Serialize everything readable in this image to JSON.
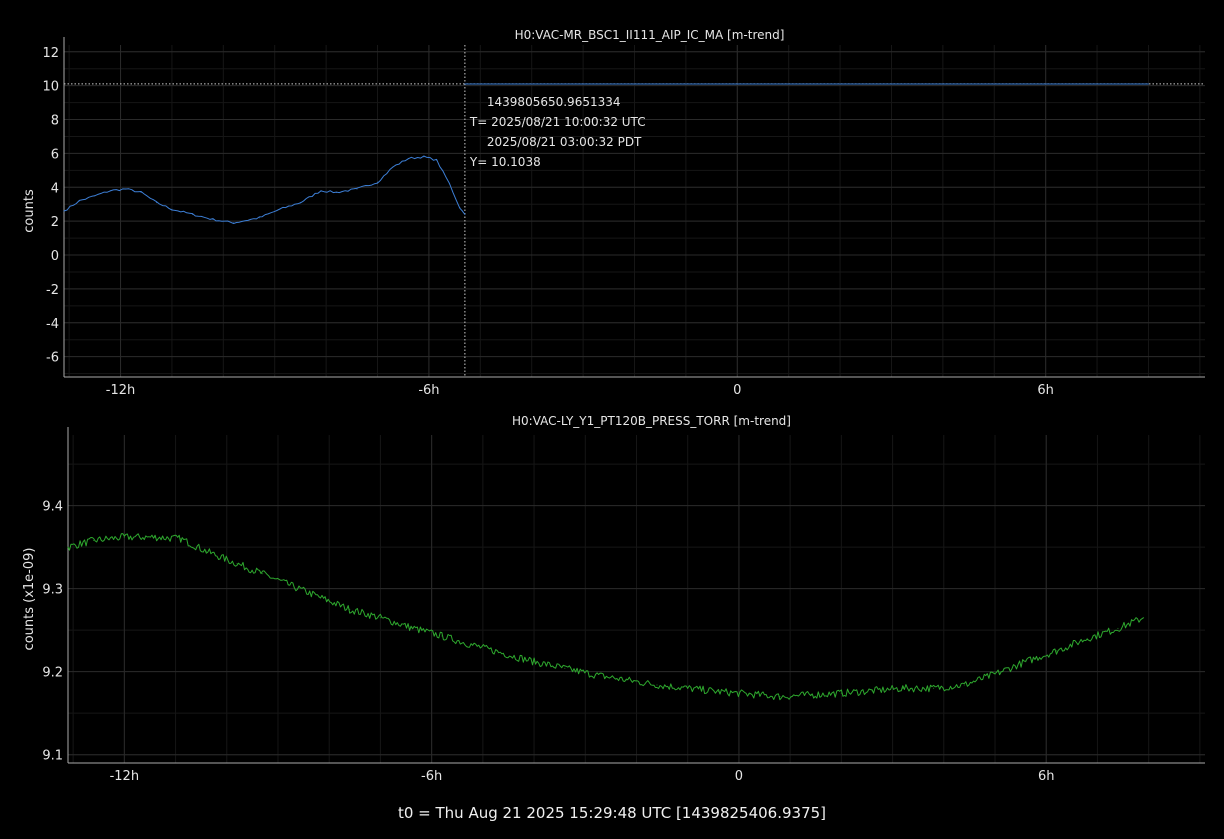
{
  "footer": "t0 = Thu Aug 21 2025 15:29:48 UTC [1439825406.9375]",
  "colors": {
    "background": "#000000",
    "grid_major": "#2a2a2a",
    "grid_minor": "#161616",
    "axis": "#aaaaaa",
    "text": "#e6e6e6",
    "series1": "#3d7fd6",
    "series2": "#2ea82e",
    "reference_line": "#cccccc"
  },
  "chart_data": [
    {
      "type": "line",
      "title": "H0:VAC-MR_BSC1_II111_AIP_IC_MA [m-trend]",
      "ylabel": "counts",
      "xlim": [
        -13.1,
        9.1
      ],
      "ylim": [
        -7.2,
        12.4
      ],
      "x_ticks": [
        -12,
        -6,
        0,
        6
      ],
      "x_tick_labels": [
        "-12h",
        "-6h",
        "0",
        "6h"
      ],
      "y_ticks": [
        -6,
        -4,
        -2,
        0,
        2,
        4,
        6,
        8,
        10,
        12
      ],
      "y_tick_labels": [
        "-6",
        "-4",
        "-2",
        "0",
        "2",
        "4",
        "6",
        "8",
        "10",
        "12"
      ],
      "grid": true,
      "series": [
        {
          "color": "#3d7fd6",
          "x": [
            -13.1,
            -12.8,
            -12.5,
            -12.2,
            -11.9,
            -11.6,
            -11.3,
            -11.0,
            -10.6,
            -10.2,
            -9.8,
            -9.3,
            -8.9,
            -8.5,
            -8.1,
            -7.8,
            -7.4,
            -7.0,
            -6.7,
            -6.4,
            -6.1,
            -5.85,
            -5.6,
            -5.4,
            -5.3
          ],
          "y": [
            2.6,
            3.2,
            3.5,
            3.8,
            3.9,
            3.7,
            3.1,
            2.7,
            2.4,
            2.1,
            1.9,
            2.2,
            2.7,
            3.1,
            3.8,
            3.7,
            3.9,
            4.3,
            5.2,
            5.7,
            5.8,
            5.6,
            4.2,
            2.8,
            2.4
          ]
        },
        {
          "color": "#3d7fd6",
          "x": [
            -5.3,
            8.0
          ],
          "y": [
            10.1,
            10.1
          ]
        }
      ],
      "reference_lines": {
        "y": 10.1038,
        "x": -5.3
      },
      "annotation": {
        "lines": [
          "1439805650.9651334",
          "T= 2025/08/21 10:00:32 UTC",
          "2025/08/21 03:00:32 PDT",
          "Y= 10.1038"
        ]
      }
    },
    {
      "type": "line",
      "title": "H0:VAC-LY_Y1_PT120B_PRESS_TORR [m-trend]",
      "ylabel": "counts (x1e-09)",
      "xlim": [
        -13.1,
        9.1
      ],
      "ylim": [
        9.09,
        9.485
      ],
      "x_ticks": [
        -12,
        -6,
        0,
        6
      ],
      "x_tick_labels": [
        "-12h",
        "-6h",
        "0",
        "6h"
      ],
      "y_ticks": [
        9.1,
        9.2,
        9.3,
        9.4
      ],
      "y_tick_labels": [
        "9.1",
        "9.2",
        "9.3",
        "9.4"
      ],
      "grid": true,
      "series": [
        {
          "color": "#2ea82e",
          "x": [
            -13.1,
            -12.6,
            -12.0,
            -11.4,
            -10.9,
            -10.4,
            -9.8,
            -9.3,
            -8.8,
            -8.2,
            -7.6,
            -7.0,
            -6.4,
            -5.8,
            -5.2,
            -4.6,
            -4.0,
            -3.4,
            -2.8,
            -2.2,
            -1.6,
            -1.0,
            -0.4,
            0.2,
            0.8,
            1.4,
            2.0,
            2.6,
            3.2,
            3.8,
            4.4,
            5.0,
            5.6,
            6.2,
            6.8,
            7.4,
            7.9
          ],
          "y": [
            9.35,
            9.358,
            9.362,
            9.362,
            9.36,
            9.345,
            9.33,
            9.318,
            9.305,
            9.29,
            9.275,
            9.265,
            9.253,
            9.243,
            9.232,
            9.222,
            9.212,
            9.204,
            9.196,
            9.19,
            9.184,
            9.18,
            9.176,
            9.173,
            9.17,
            9.172,
            9.174,
            9.177,
            9.18,
            9.18,
            9.184,
            9.197,
            9.212,
            9.225,
            9.24,
            9.252,
            9.265
          ]
        }
      ]
    }
  ]
}
